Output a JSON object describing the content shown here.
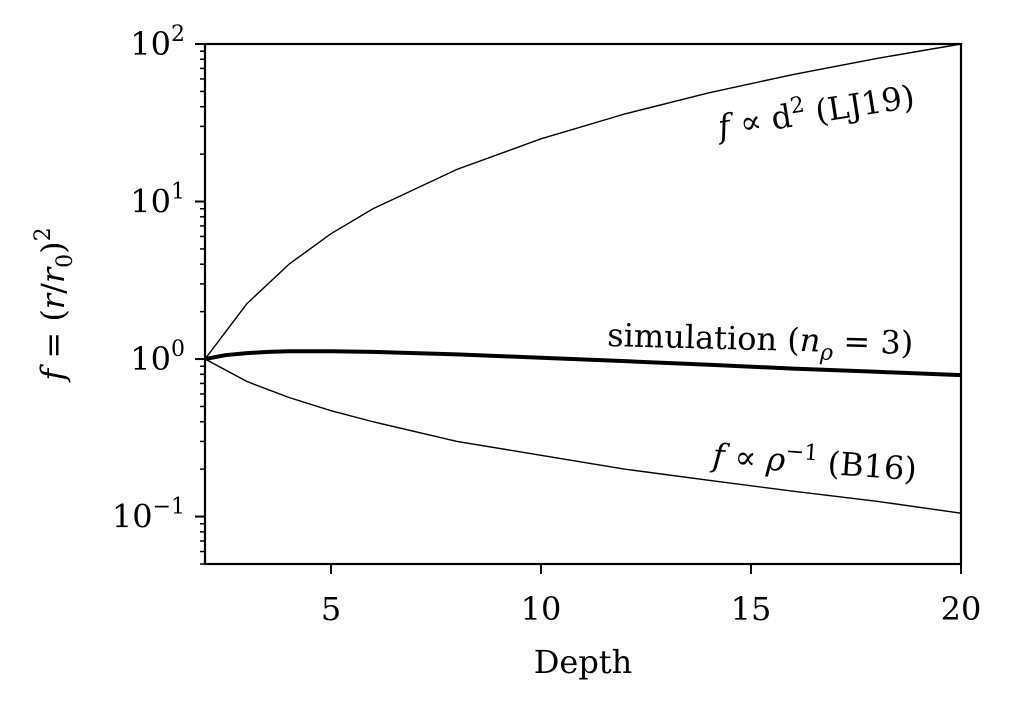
{
  "chart_data": {
    "type": "line",
    "xlabel": "Depth",
    "ylabel": {
      "f": "f",
      "eq": " = (",
      "r": "r",
      "slash": "/",
      "r0": "r",
      "sub0": "0",
      "close": ")",
      "exp": "2"
    },
    "xlim": [
      2,
      20
    ],
    "ylim": [
      0.05,
      100
    ],
    "yscale": "log",
    "grid": false,
    "x_ticks": [
      5,
      10,
      15,
      20
    ],
    "x_tick_labels": [
      "5",
      "10",
      "15",
      "20"
    ],
    "y_ticks": [
      0.1,
      1,
      10,
      100
    ],
    "y_tick_labels": [
      {
        "base": "10",
        "exp": "−1"
      },
      {
        "base": "10",
        "exp": "0"
      },
      {
        "base": "10",
        "exp": "1"
      },
      {
        "base": "10",
        "exp": "2"
      }
    ],
    "series": [
      {
        "x": [
          2,
          3,
          4,
          5,
          6,
          8,
          10,
          12,
          14,
          16,
          18,
          20
        ],
        "y": [
          1.0,
          2.25,
          4.0,
          6.25,
          9.0,
          16.0,
          25.0,
          36.0,
          49.0,
          64.0,
          81.0,
          100.0
        ],
        "color": "#000000"
      },
      {
        "x": [
          2,
          2.5,
          3,
          3.5,
          4,
          5,
          6,
          8,
          10,
          12,
          14,
          16,
          18,
          20
        ],
        "y": [
          1.0,
          1.06,
          1.09,
          1.11,
          1.12,
          1.12,
          1.11,
          1.07,
          1.02,
          0.97,
          0.92,
          0.87,
          0.83,
          0.79
        ],
        "color": "#000000"
      },
      {
        "x": [
          2,
          3,
          4,
          5,
          6,
          8,
          10,
          12,
          14,
          16,
          18,
          20
        ],
        "y": [
          1.0,
          0.72,
          0.57,
          0.47,
          0.4,
          0.3,
          0.245,
          0.2,
          0.17,
          0.145,
          0.125,
          0.105
        ],
        "color": "#000000"
      }
    ],
    "annotations": [
      {
        "pre": "f",
        "mid": " ∝ d",
        "sup": "2",
        "post": " (LJ19)"
      },
      {
        "text": "simulation (",
        "sym": "n",
        "sub": "ρ",
        "post": " = 3)"
      },
      {
        "pre": "f",
        "mid": " ∝ ",
        "sym": "ρ",
        "sup": "−1",
        "post": " (B16)"
      }
    ]
  }
}
